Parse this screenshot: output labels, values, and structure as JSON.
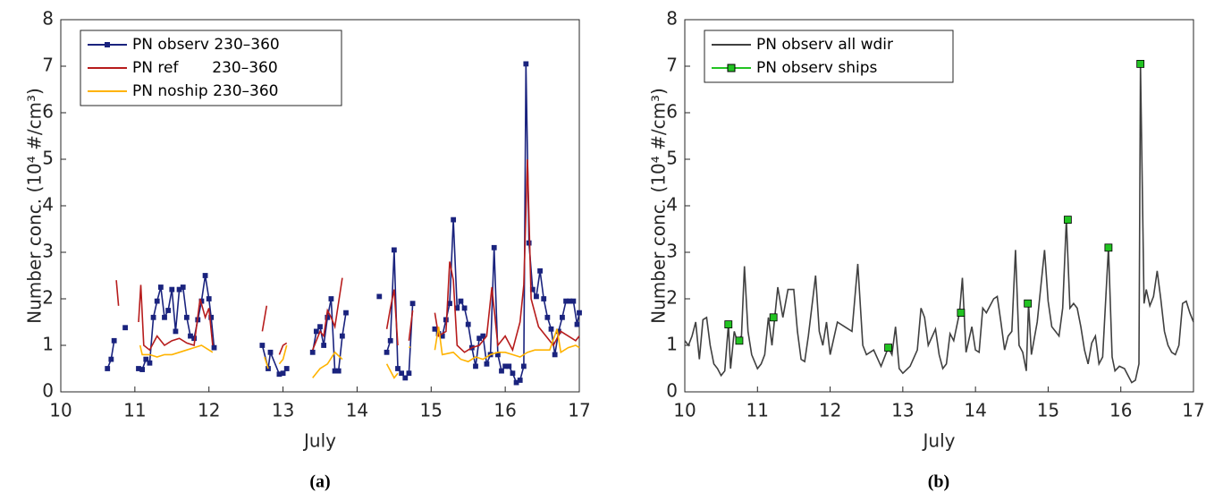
{
  "chart_data": [
    {
      "type": "line",
      "caption": "(a)",
      "xlabel": "July",
      "ylabel": "Number conc. (10⁴ #/cm³)",
      "xlim": [
        10,
        17
      ],
      "xticks": [
        10,
        11,
        12,
        13,
        14,
        15,
        16,
        17
      ],
      "ylim": [
        0,
        8
      ],
      "yticks": [
        0,
        1,
        2,
        3,
        4,
        5,
        6,
        7,
        8
      ],
      "grid": false,
      "legend": "upper left",
      "series": [
        {
          "name": "PN observ 230–360",
          "color": "#1a237e",
          "marker": "square",
          "linestyle": "solid",
          "x": [
            10.63,
            10.68,
            10.72,
            10.8,
            10.87,
            11.0,
            11.05,
            11.1,
            11.15,
            11.2,
            11.25,
            11.3,
            11.35,
            11.4,
            11.45,
            11.5,
            11.55,
            11.6,
            11.65,
            11.7,
            11.75,
            11.8,
            11.85,
            11.9,
            11.95,
            12.0,
            12.03,
            12.07,
            12.4,
            12.72,
            12.8,
            12.83,
            12.95,
            13.0,
            13.05,
            13.2,
            13.4,
            13.45,
            13.5,
            13.55,
            13.6,
            13.65,
            13.7,
            13.75,
            13.8,
            13.85,
            14.1,
            14.3,
            14.35,
            14.4,
            14.45,
            14.5,
            14.55,
            14.6,
            14.65,
            14.7,
            14.75,
            14.9,
            15.05,
            15.1,
            15.15,
            15.2,
            15.25,
            15.3,
            15.35,
            15.4,
            15.45,
            15.5,
            15.55,
            15.6,
            15.65,
            15.7,
            15.75,
            15.8,
            15.85,
            15.9,
            15.95,
            16.0,
            16.05,
            16.1,
            16.15,
            16.2,
            16.25,
            16.28,
            16.32,
            16.37,
            16.42,
            16.47,
            16.52,
            16.57,
            16.62,
            16.67,
            16.72,
            16.77,
            16.82,
            16.87,
            16.92,
            16.97,
            17.0
          ],
          "values": [
            0.5,
            0.7,
            1.1,
            null,
            1.38,
            null,
            0.5,
            0.48,
            0.7,
            0.62,
            1.6,
            1.95,
            2.25,
            1.6,
            1.75,
            2.2,
            1.3,
            2.2,
            2.25,
            1.6,
            1.2,
            1.15,
            1.55,
            1.95,
            2.5,
            2.0,
            1.6,
            0.95,
            null,
            1.0,
            0.5,
            0.85,
            0.38,
            0.4,
            0.5,
            null,
            0.85,
            1.3,
            1.4,
            1.0,
            1.6,
            2.0,
            0.45,
            0.45,
            1.2,
            1.7,
            null,
            2.05,
            null,
            0.85,
            1.1,
            3.05,
            0.5,
            0.4,
            0.3,
            0.4,
            1.9,
            null,
            1.35,
            1.25,
            1.2,
            1.55,
            1.9,
            3.7,
            1.8,
            1.95,
            1.8,
            1.45,
            0.95,
            0.55,
            1.15,
            1.2,
            0.6,
            0.8,
            3.1,
            0.8,
            0.45,
            0.55,
            0.55,
            0.4,
            0.2,
            0.25,
            0.55,
            7.05,
            3.2,
            2.2,
            2.05,
            2.6,
            2.0,
            1.6,
            1.35,
            0.8,
            1.3,
            1.6,
            1.95,
            1.95,
            1.95,
            1.45,
            1.7
          ]
        },
        {
          "name": "PN ref       230–360",
          "color": "#b71c1c",
          "marker": "none",
          "linestyle": "solid",
          "x": [
            10.75,
            10.78,
            10.9,
            11.05,
            11.08,
            11.12,
            11.2,
            11.3,
            11.4,
            11.5,
            11.6,
            11.7,
            11.8,
            11.88,
            11.95,
            12.0,
            12.05,
            12.4,
            12.72,
            12.78,
            12.9,
            12.95,
            13.0,
            13.05,
            13.2,
            13.4,
            13.5,
            13.55,
            13.6,
            13.65,
            13.7,
            13.8,
            14.1,
            14.4,
            14.45,
            14.5,
            14.55,
            14.6,
            14.7,
            14.75,
            14.9,
            15.05,
            15.1,
            15.2,
            15.25,
            15.3,
            15.35,
            15.45,
            15.55,
            15.65,
            15.75,
            15.82,
            15.9,
            16.0,
            16.1,
            16.2,
            16.25,
            16.3,
            16.35,
            16.45,
            16.55,
            16.65,
            16.75,
            16.85,
            16.95,
            17.0
          ],
          "values": [
            2.4,
            1.85,
            null,
            1.5,
            2.3,
            1.0,
            0.9,
            1.2,
            1.0,
            1.1,
            1.15,
            1.05,
            1.0,
            2.0,
            1.6,
            1.8,
            1.0,
            null,
            1.3,
            1.85,
            null,
            0.8,
            1.0,
            1.05,
            null,
            0.9,
            1.3,
            1.2,
            1.75,
            1.6,
            1.4,
            2.45,
            null,
            1.35,
            1.8,
            2.2,
            1.0,
            null,
            1.1,
            1.75,
            null,
            1.7,
            1.2,
            1.3,
            2.8,
            2.4,
            1.0,
            0.85,
            0.95,
            1.0,
            1.2,
            2.25,
            1.0,
            1.2,
            0.9,
            1.5,
            2.3,
            5.0,
            2.0,
            1.4,
            1.2,
            1.0,
            1.3,
            1.2,
            1.1,
            1.2
          ]
        },
        {
          "name": "PN noship 230–360",
          "color": "#ffb300",
          "marker": "none",
          "linestyle": "solid",
          "x": [
            11.07,
            11.1,
            11.2,
            11.3,
            11.4,
            11.5,
            11.6,
            11.7,
            11.8,
            11.9,
            12.0,
            12.05,
            12.4,
            12.75,
            12.8,
            12.9,
            12.95,
            13.0,
            13.05,
            13.2,
            13.4,
            13.5,
            13.6,
            13.7,
            13.8,
            14.1,
            14.4,
            14.5,
            14.55,
            14.6,
            14.7,
            14.72,
            14.9,
            15.05,
            15.1,
            15.15,
            15.3,
            15.4,
            15.5,
            15.6,
            15.7,
            15.8,
            15.9,
            16.0,
            16.1,
            16.2,
            16.3,
            16.4,
            16.5,
            16.6,
            16.7,
            16.75,
            16.85,
            16.95,
            17.0
          ],
          "values": [
            1.0,
            0.8,
            0.8,
            0.75,
            0.8,
            0.8,
            0.85,
            0.9,
            0.95,
            1.0,
            0.9,
            0.85,
            null,
            0.75,
            0.5,
            null,
            0.6,
            0.7,
            1.0,
            null,
            0.3,
            0.5,
            0.6,
            0.85,
            0.7,
            null,
            0.6,
            0.3,
            0.4,
            null,
            0.95,
            0.97,
            null,
            0.9,
            1.4,
            0.8,
            0.85,
            0.7,
            0.65,
            0.75,
            0.7,
            0.8,
            0.85,
            0.85,
            0.8,
            0.75,
            0.85,
            0.9,
            0.9,
            0.9,
            1.35,
            0.85,
            0.95,
            1.0,
            0.95
          ]
        }
      ]
    },
    {
      "type": "line",
      "caption": "(b)",
      "xlabel": "July",
      "ylabel": "Number conc. (10⁴ #/cm³)",
      "xlim": [
        10,
        17
      ],
      "xticks": [
        10,
        11,
        12,
        13,
        14,
        15,
        16,
        17
      ],
      "ylim": [
        0,
        8
      ],
      "yticks": [
        0,
        1,
        2,
        3,
        4,
        5,
        6,
        7,
        8
      ],
      "grid": false,
      "legend": "upper left",
      "series": [
        {
          "name": "PN observ all wdir",
          "color": "#404040",
          "marker": "none",
          "linestyle": "solid",
          "x": [
            10.0,
            10.05,
            10.1,
            10.15,
            10.2,
            10.25,
            10.3,
            10.35,
            10.4,
            10.45,
            10.5,
            10.55,
            10.6,
            10.63,
            10.68,
            10.72,
            10.78,
            10.82,
            10.87,
            10.92,
            11.0,
            11.05,
            11.1,
            11.15,
            11.2,
            11.28,
            11.35,
            11.42,
            11.5,
            11.55,
            11.6,
            11.65,
            11.7,
            11.8,
            11.85,
            11.9,
            11.95,
            12.0,
            12.1,
            12.2,
            12.3,
            12.38,
            12.45,
            12.5,
            12.6,
            12.7,
            12.8,
            12.85,
            12.9,
            12.95,
            13.0,
            13.1,
            13.2,
            13.25,
            13.3,
            13.35,
            13.45,
            13.5,
            13.55,
            13.6,
            13.65,
            13.7,
            13.78,
            13.82,
            13.87,
            13.95,
            14.0,
            14.05,
            14.1,
            14.15,
            14.25,
            14.3,
            14.35,
            14.4,
            14.45,
            14.5,
            14.55,
            14.6,
            14.65,
            14.7,
            14.73,
            14.77,
            14.85,
            14.95,
            15.0,
            15.05,
            15.1,
            15.15,
            15.2,
            15.25,
            15.3,
            15.35,
            15.4,
            15.45,
            15.5,
            15.55,
            15.6,
            15.65,
            15.7,
            15.75,
            15.83,
            15.88,
            15.92,
            15.98,
            16.05,
            16.1,
            16.15,
            16.2,
            16.25,
            16.27,
            16.32,
            16.35,
            16.4,
            16.45,
            16.5,
            16.55,
            16.6,
            16.65,
            16.7,
            16.75,
            16.8,
            16.85,
            16.9,
            16.95,
            17.0
          ],
          "values": [
            1.1,
            1.0,
            1.2,
            1.5,
            0.7,
            1.55,
            1.6,
            1.0,
            0.6,
            0.5,
            0.35,
            0.45,
            1.45,
            0.5,
            1.3,
            1.1,
            1.2,
            2.7,
            1.3,
            0.8,
            0.5,
            0.6,
            0.8,
            1.6,
            1.0,
            2.25,
            1.6,
            2.2,
            2.2,
            1.3,
            0.7,
            0.65,
            1.2,
            2.5,
            1.3,
            1.0,
            1.5,
            0.8,
            1.5,
            1.4,
            1.3,
            2.75,
            1.0,
            0.8,
            0.9,
            0.55,
            0.95,
            0.8,
            1.4,
            0.5,
            0.4,
            0.55,
            0.9,
            1.8,
            1.6,
            1.0,
            1.35,
            0.8,
            0.5,
            0.6,
            1.25,
            1.1,
            1.7,
            2.45,
            0.85,
            1.4,
            0.9,
            0.85,
            1.8,
            1.7,
            2.0,
            2.05,
            1.5,
            0.9,
            1.2,
            1.3,
            3.05,
            1.0,
            0.85,
            0.45,
            1.9,
            0.8,
            1.5,
            3.05,
            1.95,
            1.4,
            1.3,
            1.2,
            1.8,
            3.7,
            1.8,
            1.9,
            1.8,
            1.4,
            0.9,
            0.6,
            1.05,
            1.2,
            0.6,
            0.75,
            3.1,
            0.75,
            0.45,
            0.55,
            0.5,
            0.35,
            0.2,
            0.25,
            0.6,
            7.05,
            1.9,
            2.2,
            1.85,
            2.05,
            2.6,
            2.0,
            1.3,
            1.0,
            0.85,
            0.8,
            1.0,
            1.9,
            1.95,
            1.7,
            1.5
          ]
        },
        {
          "name": "PN observ ships",
          "color": "#22c322",
          "marker": "square",
          "linestyle": "none",
          "x": [
            10.6,
            10.75,
            11.22,
            12.8,
            13.8,
            14.72,
            15.27,
            15.83,
            16.27
          ],
          "values": [
            1.45,
            1.1,
            1.6,
            0.95,
            1.7,
            1.9,
            3.7,
            3.1,
            7.05
          ]
        }
      ]
    }
  ]
}
